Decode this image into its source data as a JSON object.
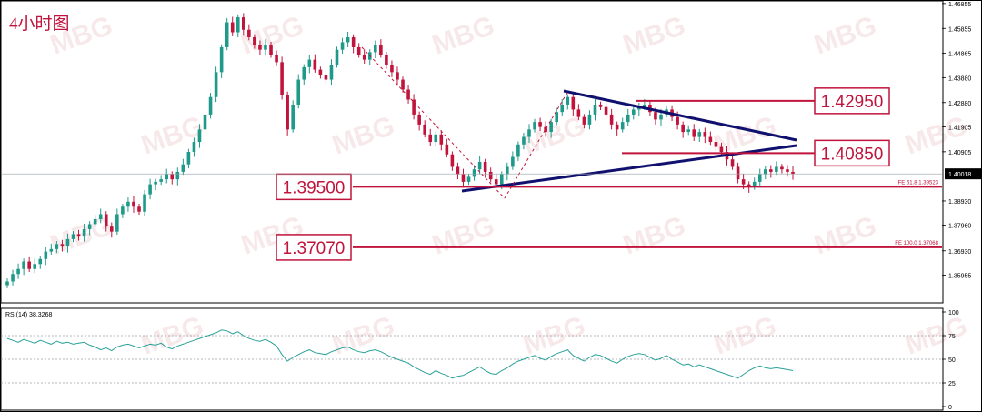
{
  "title": "4小时图",
  "colors": {
    "bull": "#1f9a8a",
    "bear": "#c0143c",
    "level": "#c0143c",
    "trend": "#10106e",
    "rsi": "#2aa198",
    "border": "#000000",
    "watermark": "#e9c0c6"
  },
  "watermark_text": "MBG",
  "chart_data": [
    {
      "type": "candlestick",
      "title": "4小时图",
      "ylim": [
        1.3495,
        1.4685
      ],
      "y_ticks": [
        "1.46855",
        "1.45855",
        "1.44865",
        "1.43880",
        "1.42880",
        "1.41905",
        "1.40905",
        "1.39930",
        "1.38930",
        "1.37960",
        "1.36930",
        "1.35955"
      ],
      "current_price": "1.40018",
      "levels": [
        {
          "label": "1.42950",
          "value": 1.4295,
          "boxed": true
        },
        {
          "label": "1.40850",
          "value": 1.4085,
          "boxed": true
        },
        {
          "label": "1.39500",
          "value": 1.395,
          "boxed": true,
          "note": "FE 61.8 1.39523"
        },
        {
          "label": "1.37070",
          "value": 1.3707,
          "boxed": true,
          "note": "FE 100.0 1.37068"
        }
      ],
      "close": [
        1.357,
        1.36,
        1.362,
        1.365,
        1.362,
        1.364,
        1.366,
        1.369,
        1.37,
        1.372,
        1.371,
        1.374,
        1.376,
        1.375,
        1.378,
        1.38,
        1.382,
        1.384,
        1.379,
        1.377,
        1.384,
        1.387,
        1.389,
        1.387,
        1.385,
        1.392,
        1.396,
        1.397,
        1.398,
        1.4,
        1.398,
        1.401,
        1.404,
        1.409,
        1.413,
        1.418,
        1.424,
        1.431,
        1.441,
        1.451,
        1.461,
        1.457,
        1.463,
        1.458,
        1.455,
        1.452,
        1.45,
        1.452,
        1.448,
        1.445,
        1.432,
        1.418,
        1.428,
        1.438,
        1.443,
        1.446,
        1.442,
        1.44,
        1.438,
        1.444,
        1.45,
        1.453,
        1.455,
        1.451,
        1.448,
        1.446,
        1.449,
        1.452,
        1.448,
        1.444,
        1.441,
        1.438,
        1.434,
        1.43,
        1.424,
        1.42,
        1.416,
        1.413,
        1.416,
        1.412,
        1.408,
        1.403,
        1.4,
        1.397,
        1.399,
        1.402,
        1.405,
        1.401,
        1.398,
        1.396,
        1.4,
        1.403,
        1.407,
        1.412,
        1.415,
        1.418,
        1.421,
        1.419,
        1.417,
        1.421,
        1.425,
        1.428,
        1.431,
        1.426,
        1.423,
        1.42,
        1.424,
        1.428,
        1.427,
        1.424,
        1.42,
        1.418,
        1.421,
        1.424,
        1.426,
        1.427,
        1.428,
        1.425,
        1.422,
        1.424,
        1.426,
        1.423,
        1.42,
        1.417,
        1.418,
        1.415,
        1.417,
        1.415,
        1.413,
        1.411,
        1.409,
        1.406,
        1.403,
        1.398,
        1.396,
        1.395,
        1.397,
        1.4,
        1.402,
        1.401,
        1.403,
        1.402,
        1.401,
        1.4002
      ],
      "rsi": {
        "label": "RSI(14) 38.3268",
        "ylim": [
          0,
          100
        ],
        "levels": [
          75,
          50,
          25
        ],
        "y_ticks": [
          "100",
          "75",
          "50",
          "25",
          "0"
        ],
        "values": [
          72,
          70,
          68,
          71,
          69,
          67,
          70,
          68,
          66,
          69,
          67,
          68,
          66,
          67,
          68,
          65,
          63,
          60,
          62,
          59,
          63,
          65,
          66,
          64,
          62,
          64,
          66,
          65,
          67,
          63,
          61,
          64,
          66,
          68,
          70,
          72,
          74,
          76,
          78,
          81,
          80,
          77,
          79,
          75,
          72,
          70,
          69,
          71,
          68,
          64,
          55,
          48,
          52,
          55,
          58,
          60,
          57,
          56,
          55,
          58,
          60,
          62,
          63,
          60,
          58,
          57,
          59,
          60,
          58,
          55,
          52,
          50,
          48,
          46,
          42,
          39,
          36,
          34,
          38,
          35,
          33,
          30,
          32,
          33,
          36,
          39,
          42,
          38,
          35,
          34,
          38,
          41,
          45,
          48,
          50,
          52,
          54,
          51,
          49,
          53,
          56,
          58,
          60,
          54,
          51,
          48,
          52,
          55,
          54,
          51,
          48,
          46,
          50,
          53,
          55,
          56,
          55,
          52,
          49,
          51,
          54,
          50,
          47,
          44,
          45,
          42,
          44,
          42,
          40,
          38,
          36,
          34,
          32,
          30,
          34,
          38,
          41,
          43,
          41,
          40,
          41,
          40,
          39,
          38
        ]
      }
    }
  ]
}
